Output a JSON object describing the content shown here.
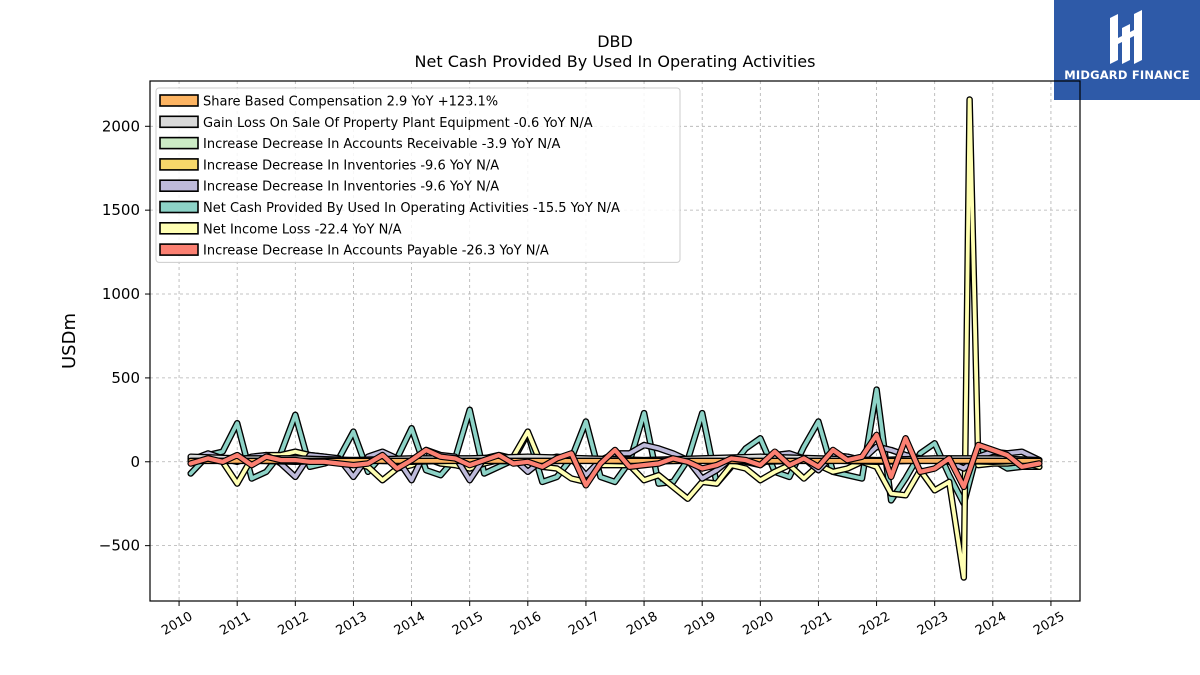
{
  "chart_title_top": "DBD",
  "chart_title_main": "Net Cash Provided By Used In Operating Activities",
  "logo_text": "MIDGARD FINANCE",
  "chart_data": {
    "type": "line",
    "title": "Net Cash Provided By Used In Operating Activities",
    "ylabel": "USDm",
    "xlabel": "",
    "ylim": [
      -830,
      2270
    ],
    "xlim": [
      2009.5,
      2025.5
    ],
    "yticks": [
      -500,
      0,
      500,
      1000,
      1500,
      2000
    ],
    "ytick_labels": [
      "−500",
      "0",
      "500",
      "1000",
      "1500",
      "2000"
    ],
    "xticks": [
      2010,
      2011,
      2012,
      2013,
      2014,
      2015,
      2016,
      2017,
      2018,
      2019,
      2020,
      2021,
      2022,
      2023,
      2024,
      2025
    ],
    "grid": true,
    "legend_position": "top-left",
    "series": [
      {
        "name": "Net Cash Provided By Used In Operating Activities",
        "legend": "Net Cash Provided By Used In Operating Activities  -15.5 YoY N/A",
        "color": "#8dd3c7",
        "x": [
          2010.2,
          2010.5,
          2010.75,
          2011.0,
          2011.25,
          2011.5,
          2011.75,
          2012.0,
          2012.25,
          2012.5,
          2012.75,
          2013.0,
          2013.25,
          2013.5,
          2013.75,
          2014.0,
          2014.25,
          2014.5,
          2014.75,
          2015.0,
          2015.25,
          2015.5,
          2015.75,
          2016.0,
          2016.25,
          2016.5,
          2016.75,
          2017.0,
          2017.25,
          2017.5,
          2017.75,
          2018.0,
          2018.25,
          2018.5,
          2018.75,
          2019.0,
          2019.25,
          2019.5,
          2019.75,
          2020.0,
          2020.25,
          2020.5,
          2020.75,
          2021.0,
          2021.25,
          2021.5,
          2021.75,
          2022.0,
          2022.25,
          2022.5,
          2022.75,
          2023.0,
          2023.25,
          2023.5,
          2023.75,
          2024.0,
          2024.25,
          2024.5,
          2024.8
        ],
        "y": [
          -70,
          40,
          60,
          230,
          -100,
          -60,
          50,
          280,
          -30,
          -10,
          20,
          180,
          -60,
          40,
          20,
          200,
          -50,
          -80,
          20,
          310,
          -70,
          -30,
          10,
          170,
          -120,
          -90,
          20,
          240,
          -90,
          -120,
          0,
          290,
          -130,
          -120,
          10,
          290,
          -130,
          -30,
          80,
          140,
          -60,
          -90,
          90,
          240,
          -60,
          -80,
          -100,
          430,
          -230,
          -100,
          50,
          110,
          -80,
          -250,
          80,
          10,
          -40,
          -30,
          -30
        ]
      },
      {
        "name": "Net Income Loss",
        "legend": "Net Income Loss  -22.4 YoY N/A",
        "color": "#ffffb3",
        "x": [
          2010.2,
          2010.5,
          2010.75,
          2011.0,
          2011.25,
          2011.5,
          2011.75,
          2012.0,
          2012.25,
          2012.5,
          2012.75,
          2013.0,
          2013.25,
          2013.5,
          2013.75,
          2014.0,
          2014.25,
          2014.5,
          2014.75,
          2015.0,
          2015.25,
          2015.5,
          2015.75,
          2016.0,
          2016.25,
          2016.5,
          2016.75,
          2017.0,
          2017.25,
          2017.5,
          2017.75,
          2018.0,
          2018.25,
          2018.5,
          2018.75,
          2019.0,
          2019.25,
          2019.5,
          2019.75,
          2020.0,
          2020.25,
          2020.5,
          2020.75,
          2021.0,
          2021.25,
          2021.5,
          2021.75,
          2022.0,
          2022.25,
          2022.5,
          2022.75,
          2023.0,
          2023.25,
          2023.5,
          2023.6,
          2023.75,
          2024.0,
          2024.25,
          2024.5,
          2024.8
        ],
        "y": [
          20,
          30,
          0,
          -130,
          20,
          40,
          40,
          60,
          40,
          30,
          10,
          -10,
          -30,
          -110,
          -40,
          -20,
          20,
          -10,
          -20,
          -40,
          -10,
          10,
          30,
          180,
          -30,
          -40,
          -100,
          -120,
          -20,
          -20,
          -20,
          -110,
          -80,
          -150,
          -220,
          -120,
          -130,
          -20,
          -40,
          -110,
          -60,
          -20,
          -100,
          -20,
          -60,
          -40,
          0,
          -30,
          -190,
          -200,
          -50,
          -170,
          -120,
          -690,
          2160,
          -20,
          -10,
          -10,
          0,
          -30
        ]
      },
      {
        "name": "Increase Decrease In Inventories",
        "legend": "Increase Decrease In Inventories  -9.6 YoY N/A",
        "color": "#bebada",
        "x": [
          2010.2,
          2010.5,
          2010.75,
          2011.0,
          2011.25,
          2011.5,
          2011.75,
          2012.0,
          2012.25,
          2012.5,
          2012.75,
          2013.0,
          2013.25,
          2013.5,
          2013.75,
          2014.0,
          2014.25,
          2014.5,
          2014.75,
          2015.0,
          2015.25,
          2015.5,
          2015.75,
          2016.0,
          2016.25,
          2016.5,
          2016.75,
          2017.0,
          2017.25,
          2017.5,
          2017.75,
          2018.0,
          2018.25,
          2018.5,
          2018.75,
          2019.0,
          2019.25,
          2019.5,
          2019.75,
          2020.0,
          2020.25,
          2020.5,
          2020.75,
          2021.0,
          2021.25,
          2021.5,
          2021.75,
          2022.0,
          2022.25,
          2022.5,
          2022.75,
          2023.0,
          2023.25,
          2023.5,
          2023.75,
          2024.0,
          2024.25,
          2024.5,
          2024.8
        ],
        "y": [
          10,
          50,
          20,
          0,
          30,
          40,
          -10,
          -90,
          40,
          30,
          20,
          -90,
          30,
          60,
          20,
          -110,
          70,
          40,
          30,
          -110,
          20,
          40,
          20,
          -60,
          10,
          30,
          20,
          -80,
          10,
          50,
          50,
          100,
          80,
          50,
          10,
          -100,
          -50,
          20,
          0,
          -20,
          40,
          50,
          20,
          -50,
          40,
          30,
          10,
          90,
          70,
          40,
          20,
          10,
          0,
          -40,
          30,
          60,
          50,
          60,
          10
        ]
      },
      {
        "name": "Increase Decrease In Inventories",
        "legend": "Increase Decrease In Inventories  -9.6 YoY N/A",
        "color": "#f7d86a",
        "x": [],
        "y": []
      },
      {
        "name": "Increase Decrease In Accounts Receivable",
        "legend": "Increase Decrease In Accounts Receivable  -3.9 YoY N/A",
        "color": "#ccebc5",
        "x": [
          2010.2,
          2011.0,
          2012.0,
          2013.0,
          2014.0,
          2015.0,
          2016.0,
          2017.0,
          2018.0,
          2019.0,
          2020.0,
          2021.0,
          2022.0,
          2023.0,
          2024.0,
          2024.8
        ],
        "y": [
          20,
          10,
          0,
          10,
          0,
          10,
          0,
          10,
          0,
          10,
          0,
          10,
          0,
          10,
          0,
          10
        ]
      },
      {
        "name": "Gain Loss On Sale Of Property Plant Equipment",
        "legend": "Gain Loss On Sale Of Property Plant Equipment  -0.6 YoY N/A",
        "color": "#d9d9d9",
        "x": [
          2010.2,
          2011.0,
          2012.0,
          2013.0,
          2014.0,
          2015.0,
          2016.0,
          2017.0,
          2018.0,
          2019.0,
          2020.0,
          2021.0,
          2022.0,
          2023.0,
          2024.0,
          2024.8
        ],
        "y": [
          30,
          20,
          20,
          10,
          20,
          20,
          30,
          20,
          10,
          20,
          30,
          20,
          10,
          20,
          20,
          10
        ]
      },
      {
        "name": "Share Based Compensation",
        "legend": "Share Based Compensation  2.9 YoY +123.1%",
        "color": "#fdb462",
        "x": [
          2010.2,
          2011.0,
          2012.0,
          2013.0,
          2014.0,
          2015.0,
          2016.0,
          2017.0,
          2018.0,
          2019.0,
          2020.0,
          2021.0,
          2022.0,
          2023.0,
          2024.0,
          2024.8
        ],
        "y": [
          5,
          5,
          5,
          5,
          5,
          5,
          5,
          5,
          5,
          5,
          5,
          5,
          5,
          5,
          5,
          5
        ]
      },
      {
        "name": "Increase Decrease In Accounts Payable",
        "legend": "Increase Decrease In Accounts Payable  -26.3 YoY N/A",
        "color": "#fb8072",
        "x": [
          2010.2,
          2010.5,
          2010.75,
          2011.0,
          2011.25,
          2011.5,
          2011.75,
          2012.0,
          2012.25,
          2012.5,
          2012.75,
          2013.0,
          2013.25,
          2013.5,
          2013.75,
          2014.0,
          2014.25,
          2014.5,
          2014.75,
          2015.0,
          2015.25,
          2015.5,
          2015.75,
          2016.0,
          2016.25,
          2016.5,
          2016.75,
          2017.0,
          2017.25,
          2017.5,
          2017.75,
          2018.0,
          2018.25,
          2018.5,
          2018.75,
          2019.0,
          2019.25,
          2019.5,
          2019.75,
          2020.0,
          2020.25,
          2020.5,
          2020.75,
          2021.0,
          2021.25,
          2021.5,
          2021.75,
          2022.0,
          2022.25,
          2022.5,
          2022.75,
          2023.0,
          2023.25,
          2023.5,
          2023.75,
          2024.0,
          2024.25,
          2024.5,
          2024.8
        ],
        "y": [
          -10,
          20,
          0,
          40,
          -20,
          30,
          10,
          10,
          0,
          0,
          -10,
          -20,
          -10,
          40,
          -40,
          10,
          70,
          30,
          20,
          -20,
          10,
          40,
          -10,
          0,
          -30,
          20,
          50,
          -140,
          -10,
          70,
          -30,
          -20,
          -10,
          20,
          0,
          -40,
          -20,
          20,
          10,
          -20,
          60,
          -20,
          20,
          -30,
          70,
          10,
          30,
          160,
          -90,
          140,
          -60,
          -40,
          20,
          -150,
          100,
          70,
          40,
          -30,
          -10
        ]
      }
    ],
    "legend_order": [
      6,
      5,
      4,
      3,
      2,
      0,
      1,
      7
    ]
  }
}
